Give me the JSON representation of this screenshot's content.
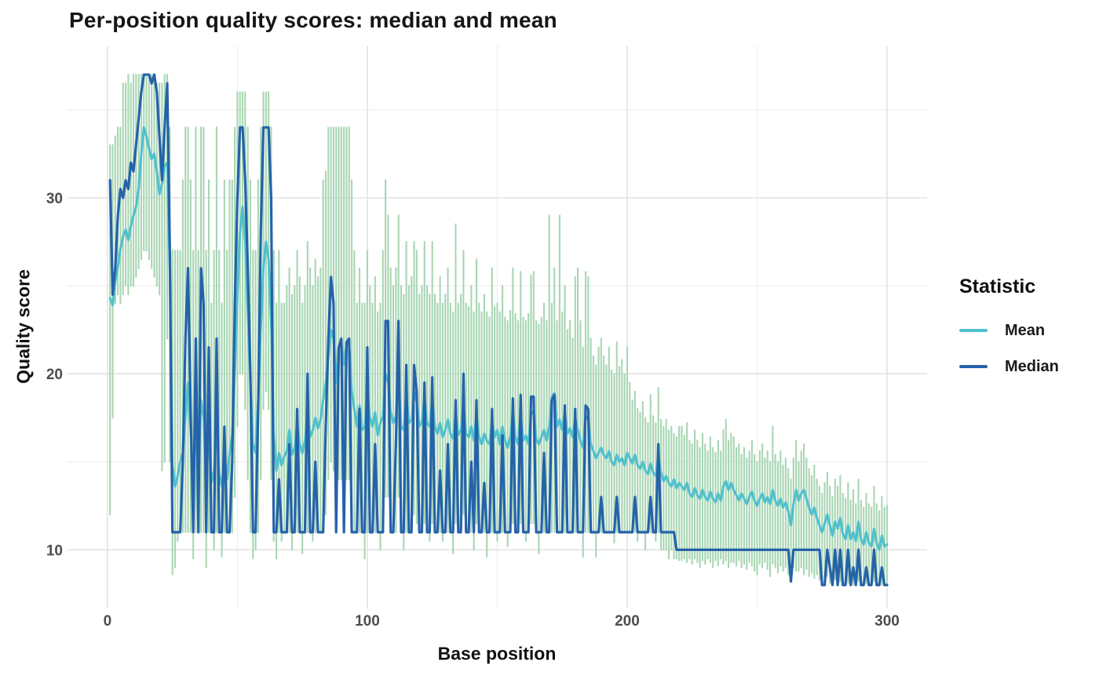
{
  "figure": {
    "title": "Per-position quality scores: median and mean",
    "xlabel": "Base position",
    "ylabel": "Quality score",
    "legend_title": "Statistic"
  },
  "chart_data": {
    "type": "line",
    "title": "Per-position quality scores: median and mean",
    "xlabel": "Base position",
    "ylabel": "Quality score",
    "legend_title": "Statistic",
    "legend_position": "right",
    "grid": true,
    "n_positions": 300,
    "x_start": 1,
    "x_step": 1,
    "xlim": [
      0,
      300
    ],
    "ylim": [
      7,
      38.5
    ],
    "x_ticks": [
      0,
      100,
      200,
      300
    ],
    "x_minor_ticks": [
      50,
      150,
      250
    ],
    "y_ticks": [
      10,
      20,
      30
    ],
    "y_minor_ticks": [
      15,
      25,
      35
    ],
    "colors": {
      "grid_major": "#e3e3e3",
      "grid_minor": "#ededed",
      "tick_label": "#4d4d4d",
      "text": "#1a1a1a",
      "background": "#ffffff"
    },
    "range_band": {
      "name": "per-position quality range",
      "color": "#a8d6b3",
      "lo": [
        12,
        17.5,
        24,
        24.5,
        24,
        24.5,
        25,
        24.5,
        25,
        25,
        25.5,
        26,
        26.5,
        27,
        27,
        26.5,
        26,
        25.5,
        25,
        24.5,
        14.5,
        15,
        22,
        15,
        8.6,
        9,
        10.5,
        11,
        11,
        11,
        11,
        11,
        9.5,
        11,
        11,
        11,
        11,
        9,
        11,
        11,
        10,
        11,
        11,
        9.6,
        11,
        11,
        11,
        11,
        13,
        17,
        20,
        20,
        18,
        14,
        11,
        9.5,
        10,
        11,
        14,
        18,
        19,
        18,
        14,
        10.5,
        9.5,
        11,
        10.5,
        11,
        11,
        11,
        10,
        11,
        11,
        11,
        9.8,
        11,
        11,
        11,
        10.5,
        11,
        11,
        11,
        11,
        12,
        14,
        15,
        14.5,
        11,
        14,
        14,
        11,
        14,
        14,
        11,
        11,
        11,
        11,
        11,
        9.5,
        11,
        11,
        11,
        11,
        11,
        10,
        11,
        13,
        13,
        11,
        11,
        11,
        13,
        11,
        10,
        11,
        11,
        11,
        12,
        11.5,
        11,
        11,
        11.5,
        11,
        10.5,
        11.5,
        11,
        11,
        11,
        10.5,
        11,
        11,
        11,
        9.8,
        11.5,
        11,
        11,
        12,
        11,
        11,
        11,
        10,
        11.5,
        11,
        11,
        11,
        9.6,
        11,
        11,
        11,
        10.5,
        11,
        11,
        11,
        10.2,
        11,
        11.5,
        11,
        11,
        11.5,
        11,
        10.5,
        11,
        11.5,
        11.5,
        11,
        9.8,
        11,
        11,
        11,
        11,
        11,
        11,
        11,
        11,
        11,
        11,
        11,
        11,
        11,
        11,
        11,
        11,
        9.6,
        11,
        11,
        11,
        11,
        9.6,
        11,
        11,
        11,
        11,
        11,
        11,
        10.4,
        11,
        11,
        11,
        11,
        11,
        11,
        11,
        11,
        10.5,
        11,
        11,
        10,
        11,
        11,
        11,
        10.5,
        11,
        10,
        10,
        10,
        9.5,
        10,
        9.5,
        9.5,
        9.4,
        9.4,
        9.5,
        9.3,
        9.5,
        9.2,
        9.5,
        9.3,
        9.0,
        9.4,
        9.2,
        9.5,
        9.3,
        9.0,
        9.4,
        9.1,
        9.5,
        9.2,
        9.4,
        9.0,
        9.3,
        9.3,
        9.1,
        9.4,
        9.0,
        9.2,
        8.9,
        9.3,
        9.1,
        8.8,
        8.6,
        9.2,
        9.0,
        9.3,
        8.9,
        8.5,
        9.2,
        9.0,
        8.7,
        9.1,
        8.8,
        9.0,
        8.6,
        8.2,
        9.0,
        8.8,
        8.8,
        9.0,
        8.6,
        8.9,
        8.5,
        8.7,
        8.4,
        8.6,
        8.3,
        8.0,
        8.2,
        8.5,
        8.1,
        8.0,
        8.3,
        8.0,
        8.2,
        8.0,
        8.0,
        8.1,
        8.0,
        8.0,
        8.0,
        8.2,
        8.0,
        8.0,
        8.1,
        8.0,
        8.0,
        8.2,
        8.0,
        8.0,
        8.0,
        8.0,
        8.0
      ],
      "hi": [
        33,
        33,
        33.5,
        34,
        34,
        36.5,
        36.5,
        37,
        36.5,
        37,
        37,
        37,
        37,
        37,
        37,
        37,
        37,
        37,
        36.5,
        36.5,
        36.5,
        37,
        37,
        34,
        27,
        27,
        27,
        27,
        31,
        34,
        34,
        31,
        27,
        34,
        27,
        34,
        34,
        27,
        31,
        24,
        27,
        34,
        27,
        24,
        31,
        27,
        31,
        31,
        34,
        36,
        36,
        36,
        36,
        34,
        31,
        27,
        27,
        31,
        34,
        36,
        36,
        36,
        34,
        27,
        24,
        27,
        24,
        24,
        25,
        26,
        24.5,
        25,
        27,
        25.5,
        24,
        25,
        27.5,
        26,
        25,
        26.5,
        25.5,
        26,
        31,
        31.5,
        34,
        34,
        34,
        34,
        34,
        34,
        34,
        34,
        34,
        31,
        27,
        24,
        26,
        24,
        24,
        27,
        25,
        24,
        25.5,
        23.5,
        24,
        27,
        31,
        29,
        26,
        25,
        26,
        29,
        25,
        24.5,
        27.5,
        25,
        25.5,
        27.5,
        27,
        24.5,
        25,
        27.5,
        25,
        24.5,
        27.5,
        24.5,
        24,
        25.5,
        24,
        24.5,
        26,
        24,
        23.5,
        28.5,
        24,
        24.5,
        27,
        24,
        23.8,
        25,
        23.5,
        26.5,
        24,
        23.5,
        24.5,
        23.5,
        23.2,
        26,
        23.8,
        24,
        23.5,
        25,
        23.2,
        23,
        23.6,
        26,
        23.4,
        23,
        25.8,
        23.2,
        23,
        23.4,
        25.6,
        25.8,
        23,
        22.8,
        23.2,
        24,
        23,
        29,
        24,
        26,
        23,
        29,
        23.5,
        25,
        22.5,
        23,
        22,
        25.5,
        26,
        23,
        21.5,
        25.8,
        25.5,
        22,
        21,
        20.5,
        21.5,
        22,
        21,
        20.5,
        21.5,
        20.2,
        20,
        21.8,
        20.4,
        20.8,
        20,
        21.5,
        19.5,
        18.5,
        19,
        18,
        17.8,
        18.4,
        17.5,
        17.2,
        18.8,
        17.6,
        17.2,
        19.2,
        17.4,
        17.0,
        17.4,
        16.8,
        17.0,
        16.6,
        16.4,
        17.0,
        17.0,
        16.5,
        17.2,
        16.2,
        16.0,
        16.8,
        16.2,
        15.8,
        16.6,
        16.0,
        15.6,
        16.4,
        15.8,
        15.5,
        16.2,
        15.6,
        16.8,
        17.4,
        16.2,
        16.6,
        16.4,
        15.8,
        16.0,
        15.4,
        15.8,
        15.2,
        15.6,
        16.2,
        15.4,
        15.0,
        15.6,
        16.0,
        15.2,
        15.6,
        15.0,
        17.0,
        15.4,
        15.0,
        15.6,
        14.8,
        15.2,
        14.6,
        14.0,
        15.2,
        16.2,
        15.0,
        15.6,
        16.0,
        15.2,
        14.6,
        14.2,
        14.8,
        14.0,
        13.6,
        13.2,
        13.8,
        14.4,
        13.6,
        13.0,
        14.0,
        13.6,
        14.2,
        13.2,
        12.9,
        13.8,
        12.8,
        13.4,
        12.6,
        14.0,
        12.8,
        12.4,
        13.2,
        12.6,
        12.4,
        13.6,
        12.6,
        12.2,
        13.0,
        12.4,
        12.5
      ]
    },
    "series": [
      {
        "name": "Mean",
        "color": "#4ec0ce",
        "width": 3,
        "values": [
          24.3,
          23.9,
          25.2,
          26.1,
          27.1,
          27.8,
          28.2,
          27.6,
          28.4,
          29.0,
          29.5,
          30.5,
          32.5,
          34,
          33.5,
          32.8,
          32.2,
          32.5,
          31.5,
          30.2,
          30.8,
          31.8,
          32,
          26,
          14.8,
          13.6,
          14.2,
          15.0,
          15.5,
          17.5,
          19.5,
          16.8,
          14.5,
          17.0,
          14.0,
          18.5,
          17.5,
          14.2,
          16.5,
          13.8,
          14.5,
          17.0,
          14.3,
          13.6,
          15.5,
          14.0,
          15.5,
          16.5,
          20,
          24.5,
          28,
          29.5,
          27.5,
          23.5,
          19.5,
          16,
          15.5,
          18.5,
          22.5,
          26,
          27.5,
          26.5,
          23,
          16.5,
          14.5,
          15.5,
          14.8,
          15.3,
          15.6,
          16.8,
          15.4,
          15.8,
          17.2,
          16.0,
          15.5,
          16.2,
          17.8,
          16.4,
          16.8,
          17.5,
          16.9,
          17.4,
          18.5,
          19.5,
          21,
          22.5,
          22,
          19.5,
          21.5,
          21.8,
          20.5,
          21.6,
          21.8,
          19.0,
          18.0,
          17.0,
          18.2,
          16.8,
          17.0,
          19.0,
          17.5,
          17.0,
          17.8,
          16.5,
          17.2,
          17.6,
          20.0,
          19.5,
          17.8,
          17.2,
          17.6,
          19.8,
          17.0,
          16.8,
          18.8,
          17.2,
          17.4,
          19.0,
          18.4,
          17.0,
          17.3,
          18.6,
          17.2,
          17.0,
          18.5,
          17.0,
          16.6,
          17.2,
          16.4,
          16.8,
          17.4,
          16.6,
          16.3,
          17.8,
          16.5,
          16.8,
          18.2,
          16.6,
          16.4,
          17.0,
          16.2,
          17.6,
          16.4,
          16.0,
          16.6,
          16.2,
          16.0,
          17.2,
          16.4,
          16.8,
          16.0,
          17.0,
          16.2,
          15.8,
          16.4,
          17.8,
          16.4,
          16.0,
          17.6,
          16.2,
          16.5,
          16.0,
          17.7,
          17.9,
          16.3,
          16.0,
          16.4,
          16.8,
          16.2,
          17.0,
          18.7,
          18.9,
          17.0,
          17.4,
          16.8,
          17.8,
          16.6,
          16.9,
          16.4,
          17.5,
          16.8,
          16.2,
          15.8,
          17.6,
          17.4,
          16.0,
          15.6,
          15.2,
          15.5,
          15.8,
          15.4,
          15.2,
          15.6,
          15.0,
          14.8,
          15.4,
          15.0,
          15.2,
          14.8,
          15.5,
          15.2,
          14.9,
          15.4,
          14.8,
          14.6,
          15.0,
          14.5,
          14.3,
          14.9,
          14.4,
          14.2,
          15.3,
          14.4,
          13.9,
          14.2,
          13.8,
          13.6,
          14.0,
          13.5,
          13.8,
          13.6,
          13.4,
          13.8,
          13.2,
          13.0,
          13.5,
          13.1,
          12.9,
          13.4,
          13.0,
          12.8,
          13.3,
          12.9,
          12.7,
          13.2,
          12.8,
          13.6,
          13.9,
          13.4,
          13.8,
          13.4,
          13.1,
          12.8,
          13.2,
          12.9,
          12.6,
          13.0,
          13.3,
          12.8,
          12.5,
          12.9,
          13.2,
          12.7,
          13.0,
          12.6,
          13.4,
          12.8,
          12.5,
          12.9,
          12.4,
          12.7,
          12.2,
          11.4,
          12.6,
          13.4,
          12.8,
          13.2,
          13.4,
          12.9,
          12.4,
          12.0,
          12.4,
          11.8,
          11.4,
          11.0,
          11.5,
          12.0,
          11.4,
          10.8,
          11.6,
          11.2,
          11.8,
          10.9,
          10.6,
          11.4,
          10.6,
          11.0,
          10.5,
          11.6,
          10.6,
          10.3,
          11.0,
          10.4,
          10.2,
          11.2,
          10.4,
          10.0,
          10.8,
          10.2,
          10.3
        ]
      },
      {
        "name": "Median",
        "color": "#2562a9",
        "width": 3.2,
        "values": [
          31,
          24.5,
          26,
          29,
          30.5,
          30,
          31,
          30.5,
          32,
          31.5,
          33,
          34.5,
          36,
          37,
          37,
          37,
          36.5,
          37,
          36,
          33.5,
          31,
          34,
          36.5,
          27,
          11,
          11,
          11,
          11,
          15,
          22,
          26,
          18,
          11,
          22,
          11,
          26,
          24,
          11,
          21.5,
          11,
          11,
          22,
          11,
          11,
          17,
          11,
          11,
          15,
          24,
          30,
          34,
          34,
          31,
          26,
          20,
          11,
          11,
          18,
          28,
          34,
          34,
          34,
          30,
          11,
          11,
          14,
          11,
          11,
          11,
          16,
          11,
          11,
          18,
          11,
          11,
          11,
          20,
          11,
          11,
          15,
          11,
          11,
          11,
          17,
          22,
          25.5,
          24,
          11,
          21.5,
          22,
          11,
          21.8,
          22,
          11,
          11,
          11,
          18,
          11,
          11,
          21.5,
          11,
          11,
          16,
          11,
          11,
          11,
          23,
          23,
          11,
          11,
          16,
          23,
          11,
          11,
          20.5,
          11,
          11,
          20.5,
          19,
          11,
          11,
          19.5,
          11,
          11,
          19.8,
          11,
          11,
          14.5,
          11,
          11,
          16,
          11,
          11,
          18.5,
          11,
          11,
          20,
          11,
          11,
          15,
          11,
          18.5,
          11,
          11,
          13.8,
          11,
          11,
          18,
          11,
          11,
          11,
          16.5,
          11,
          11,
          11,
          18.6,
          11,
          11,
          18.8,
          11,
          11,
          11,
          18.7,
          18.7,
          11,
          11,
          11,
          15.5,
          11,
          11,
          18.5,
          18.8,
          11,
          11,
          11,
          18.2,
          11,
          11,
          11,
          18,
          11,
          11,
          11,
          18.2,
          18,
          11,
          11,
          11,
          11,
          13,
          11,
          11,
          11,
          11,
          11,
          13,
          11,
          11,
          11,
          11,
          11,
          11,
          13,
          11,
          11,
          11,
          11,
          11,
          13,
          11,
          11,
          16,
          11,
          11,
          11,
          11,
          11,
          11,
          10,
          10,
          10,
          10,
          10,
          10,
          10,
          10,
          10,
          10,
          10,
          10,
          10,
          10,
          10,
          10,
          10,
          10,
          10,
          10,
          10,
          10,
          10,
          10,
          10,
          10,
          10,
          10,
          10,
          10,
          10,
          10,
          10,
          10,
          10,
          10,
          10,
          10,
          10,
          10,
          10,
          10,
          10,
          10,
          8.2,
          10,
          10,
          10,
          10,
          10,
          10,
          10,
          10,
          10,
          10,
          10,
          8,
          8,
          10,
          9,
          8,
          10,
          8,
          10,
          8,
          8,
          10,
          8,
          9,
          8,
          10,
          8,
          8,
          9,
          8,
          8,
          10,
          8,
          8,
          9,
          8,
          8
        ]
      }
    ]
  }
}
